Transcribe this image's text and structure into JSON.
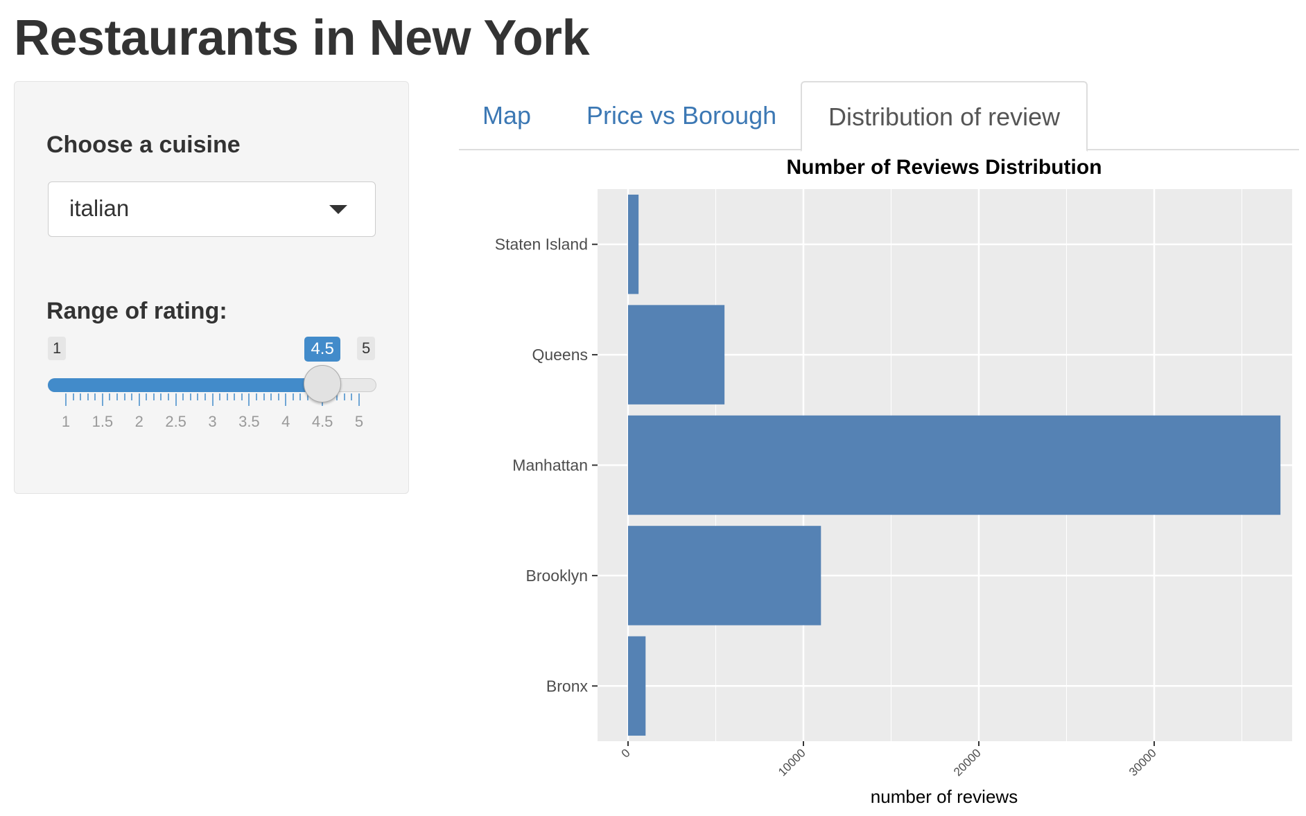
{
  "page": {
    "title": "Restaurants in New York"
  },
  "sidebar": {
    "cuisine_label": "Choose a cuisine",
    "cuisine_value": "italian",
    "range_label": "Range of rating:",
    "range_min": "1",
    "range_max": "5",
    "range_current": "4.5",
    "slider_value": 4.5,
    "tick_labels": [
      "1",
      "1.5",
      "2",
      "2.5",
      "3",
      "3.5",
      "4",
      "4.5",
      "5"
    ]
  },
  "tabs": [
    {
      "label": "Map",
      "active": false
    },
    {
      "label": "Price vs Borough",
      "active": false
    },
    {
      "label": "Distribution of review",
      "active": true
    }
  ],
  "colors": {
    "accent": "#428bca",
    "tab_link": "#3c78b4",
    "bar_fill": "#5582b4",
    "panel_bg": "#ebebeb",
    "grid": "#ffffff"
  },
  "chart_data": {
    "type": "bar",
    "orientation": "horizontal",
    "title": "Number of Reviews Distribution",
    "xlabel": "number of reviews",
    "ylabel": "",
    "categories": [
      "Staten Island",
      "Queens",
      "Manhattan",
      "Brooklyn",
      "Bronx"
    ],
    "values": [
      600,
      5500,
      37200,
      11000,
      1000
    ],
    "xlim": [
      0,
      38500
    ],
    "xticks": [
      "0",
      "10000",
      "20000",
      "30000"
    ],
    "grid": true,
    "legend": "none"
  }
}
